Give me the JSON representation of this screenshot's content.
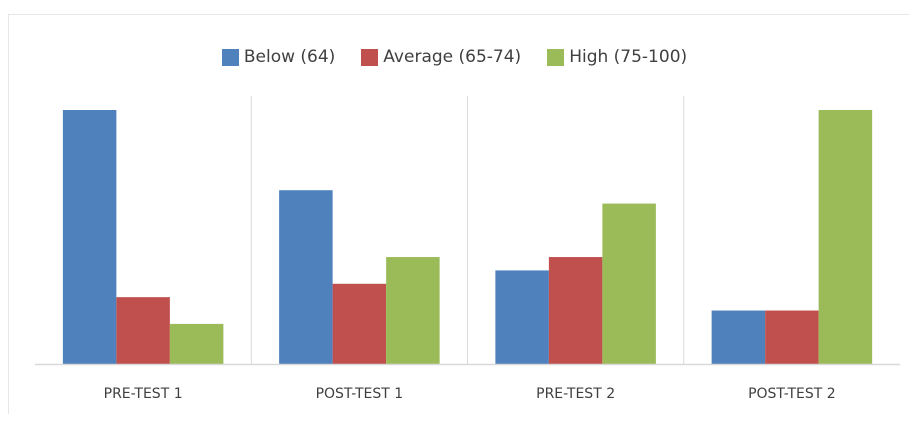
{
  "chart_data": {
    "type": "bar",
    "title": "",
    "xlabel": "",
    "ylabel": "",
    "categories": [
      "PRE-TEST 1",
      "POST-TEST 1",
      "PRE-TEST 2",
      "POST-TEST 2"
    ],
    "series": [
      {
        "name": "Below (64)",
        "color": "#4f81bd",
        "values": [
          19,
          13,
          7,
          4
        ]
      },
      {
        "name": "Average (65-74)",
        "color": "#c0504d",
        "values": [
          5,
          6,
          8,
          4
        ]
      },
      {
        "name": "High (75-100)",
        "color": "#9bbb59",
        "values": [
          3,
          8,
          12,
          19
        ]
      }
    ],
    "ylim": [
      0,
      19
    ],
    "grid": false,
    "legend_position": "top"
  }
}
